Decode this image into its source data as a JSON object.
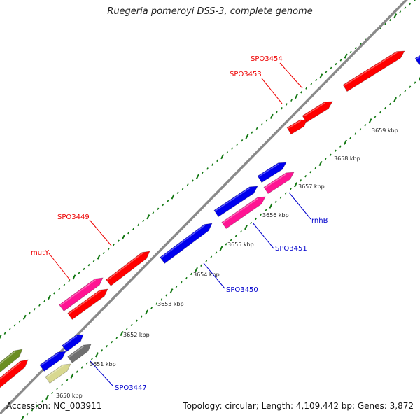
{
  "title": "Ruegeria pomeroyi DSS-3, complete genome",
  "footer": {
    "accession": "Accession: NC_003911",
    "summary": "Topology: circular; Length: 4,109,442 bp; Genes: 3,872"
  },
  "colors": {
    "backbone": "#888888",
    "tick_green": "#117711",
    "red": "#ff0000",
    "pink": "#ff1493",
    "blue": "#0000ee",
    "olive": "#6b8e23",
    "khaki": "#d8d890",
    "grey": "#707070",
    "label_red": "#ee0000",
    "label_blue": "#0000cc"
  },
  "kbp_labels": [
    "3650 kbp",
    "3651 kbp",
    "3652 kbp",
    "3653 kbp",
    "3654 kbp",
    "3655 kbp",
    "3656 kbp",
    "3657 kbp",
    "3658 kbp",
    "3659 kbp"
  ],
  "gene_labels": {
    "forward": [
      "SPO3454",
      "SPO3453",
      "SPO3449",
      "mutY"
    ],
    "reverse": [
      "rnhB",
      "SPO3451",
      "SPO3450",
      "SPO3447"
    ]
  }
}
